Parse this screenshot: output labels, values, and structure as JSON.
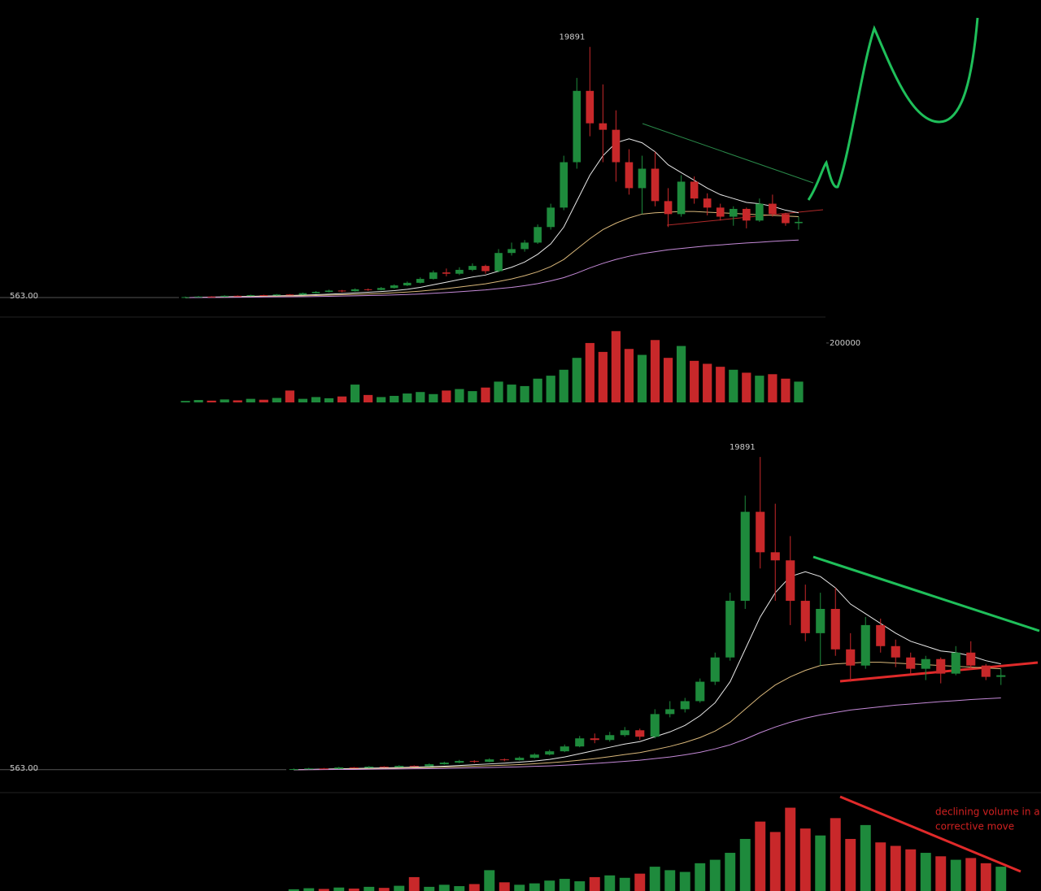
{
  "chart_data": [
    {
      "type": "candlestick",
      "open": [
        563,
        600,
        640,
        620,
        700,
        680,
        750,
        720,
        800,
        780,
        900,
        1000,
        1100,
        1050,
        1200,
        1150,
        1300,
        1500,
        1700,
        2000,
        2500,
        2400,
        2700,
        3000,
        2600,
        4000,
        4300,
        4800,
        6000,
        7500,
        11000,
        16500,
        14000,
        13500,
        11000,
        9000,
        10500,
        8000,
        7000,
        9500,
        8200,
        7500,
        6800,
        7400,
        6500,
        7800,
        7000,
        6300
      ],
      "high": [
        640,
        680,
        670,
        740,
        730,
        790,
        780,
        840,
        830,
        950,
        1060,
        1170,
        1150,
        1270,
        1260,
        1380,
        1580,
        1800,
        2120,
        2650,
        2800,
        2900,
        3200,
        3100,
        4300,
        4800,
        5000,
        6200,
        7800,
        11500,
        17500,
        19891,
        17000,
        15000,
        12000,
        11500,
        11800,
        9000,
        10000,
        9900,
        8600,
        7800,
        7600,
        7500,
        8200,
        8500,
        7100,
        6800
      ],
      "low": [
        550,
        580,
        600,
        600,
        650,
        660,
        690,
        700,
        740,
        760,
        870,
        960,
        980,
        1020,
        1080,
        1120,
        1260,
        1450,
        1650,
        1950,
        2200,
        2300,
        2600,
        2400,
        2500,
        3800,
        4100,
        4700,
        5800,
        7300,
        10500,
        13000,
        11000,
        9500,
        8500,
        7000,
        7600,
        6000,
        6800,
        7800,
        6900,
        6500,
        6100,
        5900,
        6400,
        6800,
        6100,
        5800
      ],
      "close": [
        600,
        640,
        620,
        700,
        680,
        750,
        720,
        800,
        780,
        900,
        1000,
        1100,
        1050,
        1200,
        1150,
        1300,
        1500,
        1700,
        2000,
        2500,
        2400,
        2700,
        3000,
        2600,
        4000,
        4300,
        4800,
        6000,
        7500,
        11000,
        16500,
        14000,
        13500,
        11000,
        9000,
        10500,
        8000,
        7000,
        9500,
        8200,
        7500,
        6800,
        7400,
        6500,
        7800,
        7000,
        6300,
        6400
      ],
      "volume": [
        5000,
        8000,
        6000,
        10000,
        7000,
        12000,
        9000,
        15000,
        40000,
        12000,
        18000,
        14000,
        20000,
        60000,
        25000,
        18000,
        22000,
        30000,
        35000,
        28000,
        40000,
        45000,
        38000,
        50000,
        70000,
        60000,
        55000,
        80000,
        90000,
        110000,
        150000,
        200000,
        170000,
        240000,
        180000,
        160000,
        210000,
        150000,
        190000,
        140000,
        130000,
        120000,
        110000,
        100000,
        90000,
        95000,
        80000,
        70000
      ],
      "series": [
        {
          "color": "#e8e8e8",
          "values": [
            560,
            580,
            600,
            620,
            640,
            660,
            680,
            700,
            720,
            750,
            780,
            820,
            870,
            920,
            970,
            1030,
            1100,
            1200,
            1350,
            1550,
            1750,
            1950,
            2150,
            2300,
            2600,
            2900,
            3300,
            3900,
            4700,
            6000,
            8000,
            10000,
            11500,
            12500,
            12800,
            12500,
            11800,
            10800,
            10200,
            9600,
            9000,
            8500,
            8200,
            7900,
            7800,
            7600,
            7300,
            7100
          ]
        },
        {
          "color": "#d9b77a",
          "values": [
            560,
            570,
            580,
            590,
            600,
            620,
            640,
            660,
            680,
            700,
            720,
            750,
            780,
            810,
            840,
            880,
            930,
            990,
            1060,
            1150,
            1250,
            1370,
            1500,
            1620,
            1800,
            2000,
            2250,
            2550,
            2950,
            3500,
            4300,
            5100,
            5800,
            6300,
            6700,
            7000,
            7100,
            7150,
            7200,
            7200,
            7150,
            7100,
            7050,
            7000,
            6950,
            6900,
            6850,
            6800
          ]
        },
        {
          "color": "#c58ad8",
          "values": [
            560,
            565,
            570,
            575,
            580,
            590,
            600,
            610,
            620,
            630,
            640,
            660,
            680,
            700,
            720,
            740,
            770,
            800,
            840,
            890,
            950,
            1010,
            1080,
            1150,
            1250,
            1350,
            1480,
            1640,
            1850,
            2100,
            2450,
            2850,
            3200,
            3500,
            3750,
            3950,
            4100,
            4250,
            4350,
            4450,
            4550,
            4620,
            4700,
            4770,
            4830,
            4900,
            4950,
            5000
          ]
        }
      ],
      "price_label": "563.00",
      "ylim": [
        0,
        21000
      ],
      "volume_ylim": [
        0,
        260000
      ],
      "volume_ticks": [
        200000
      ],
      "up_color": "#1e8a3c",
      "down_color": "#c8282a"
    },
    {
      "type": "candlestick",
      "open": [
        563,
        600,
        640,
        620,
        700,
        680,
        750,
        720,
        800,
        780,
        900,
        1000,
        1100,
        1050,
        1200,
        1150,
        1300,
        1500,
        1700,
        2000,
        2500,
        2400,
        2700,
        3000,
        2600,
        4000,
        4300,
        4800,
        6000,
        7500,
        11000,
        16500,
        14000,
        13500,
        11000,
        9000,
        10500,
        8000,
        7000,
        9500,
        8200,
        7500,
        6800,
        7400,
        6500,
        7800,
        7000,
        6300
      ],
      "high": [
        640,
        680,
        670,
        740,
        730,
        790,
        780,
        840,
        830,
        950,
        1060,
        1170,
        1150,
        1270,
        1260,
        1380,
        1580,
        1800,
        2120,
        2650,
        2800,
        2900,
        3200,
        3100,
        4300,
        4800,
        5000,
        6200,
        7800,
        11500,
        17500,
        19891,
        17000,
        15000,
        12000,
        11500,
        11800,
        9000,
        10000,
        9900,
        8600,
        7800,
        7600,
        7500,
        8200,
        8500,
        7100,
        6800
      ],
      "low": [
        550,
        580,
        600,
        600,
        650,
        660,
        690,
        700,
        740,
        760,
        870,
        960,
        980,
        1020,
        1080,
        1120,
        1260,
        1450,
        1650,
        1950,
        2200,
        2300,
        2600,
        2400,
        2500,
        3800,
        4100,
        4700,
        5800,
        7300,
        10500,
        13000,
        11000,
        9500,
        8500,
        7000,
        7600,
        6000,
        6800,
        7800,
        6900,
        6500,
        6100,
        5900,
        6400,
        6800,
        6100,
        5800
      ],
      "close": [
        600,
        640,
        620,
        700,
        680,
        750,
        720,
        800,
        780,
        900,
        1000,
        1100,
        1050,
        1200,
        1150,
        1300,
        1500,
        1700,
        2000,
        2500,
        2400,
        2700,
        3000,
        2600,
        4000,
        4300,
        4800,
        6000,
        7500,
        11000,
        16500,
        14000,
        13500,
        11000,
        9000,
        10500,
        8000,
        7000,
        9500,
        8200,
        7500,
        6800,
        7400,
        6500,
        7800,
        7000,
        6300,
        6400
      ],
      "volume": [
        5000,
        8000,
        6000,
        10000,
        7000,
        12000,
        9000,
        15000,
        40000,
        12000,
        18000,
        14000,
        20000,
        60000,
        25000,
        18000,
        22000,
        30000,
        35000,
        28000,
        40000,
        45000,
        38000,
        50000,
        70000,
        60000,
        55000,
        80000,
        90000,
        110000,
        150000,
        200000,
        170000,
        240000,
        180000,
        160000,
        210000,
        150000,
        190000,
        140000,
        130000,
        120000,
        110000,
        100000,
        90000,
        95000,
        80000,
        70000
      ],
      "series": [
        {
          "color": "#e8e8e8",
          "values": [
            560,
            580,
            600,
            620,
            640,
            660,
            680,
            700,
            720,
            750,
            780,
            820,
            870,
            920,
            970,
            1030,
            1100,
            1200,
            1350,
            1550,
            1750,
            1950,
            2150,
            2300,
            2600,
            2900,
            3300,
            3900,
            4700,
            6000,
            8000,
            10000,
            11500,
            12500,
            12800,
            12500,
            11800,
            10800,
            10200,
            9600,
            9000,
            8500,
            8200,
            7900,
            7800,
            7600,
            7300,
            7100
          ]
        },
        {
          "color": "#d9b77a",
          "values": [
            560,
            570,
            580,
            590,
            600,
            620,
            640,
            660,
            680,
            700,
            720,
            750,
            780,
            810,
            840,
            880,
            930,
            990,
            1060,
            1150,
            1250,
            1370,
            1500,
            1620,
            1800,
            2000,
            2250,
            2550,
            2950,
            3500,
            4300,
            5100,
            5800,
            6300,
            6700,
            7000,
            7100,
            7150,
            7200,
            7200,
            7150,
            7100,
            7050,
            7000,
            6950,
            6900,
            6850,
            6800
          ]
        },
        {
          "color": "#c58ad8",
          "values": [
            560,
            565,
            570,
            575,
            580,
            590,
            600,
            610,
            620,
            630,
            640,
            660,
            680,
            700,
            720,
            740,
            770,
            800,
            840,
            890,
            950,
            1010,
            1080,
            1150,
            1250,
            1350,
            1480,
            1640,
            1850,
            2100,
            2450,
            2850,
            3200,
            3500,
            3750,
            3950,
            4100,
            4250,
            4350,
            4450,
            4550,
            4620,
            4700,
            4770,
            4830,
            4900,
            4950,
            5000
          ]
        }
      ],
      "price_label": "563.00",
      "annotation_lines": [
        "declining volume in a",
        "corrective move"
      ],
      "ylim": [
        0,
        21000
      ],
      "volume_ylim": [
        0,
        260000
      ],
      "up_color": "#1e8a3c",
      "down_color": "#c8282a"
    }
  ]
}
